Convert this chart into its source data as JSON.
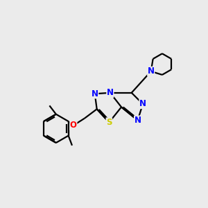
{
  "bg_color": "#ebebeb",
  "bond_color": "#000000",
  "N_color": "#0000ff",
  "S_color": "#cccc00",
  "O_color": "#ff0000",
  "line_width": 1.6,
  "font_size": 8.5,
  "fig_width": 3.0,
  "fig_height": 3.0,
  "xlim": [
    0,
    10
  ],
  "ylim": [
    0,
    10
  ]
}
